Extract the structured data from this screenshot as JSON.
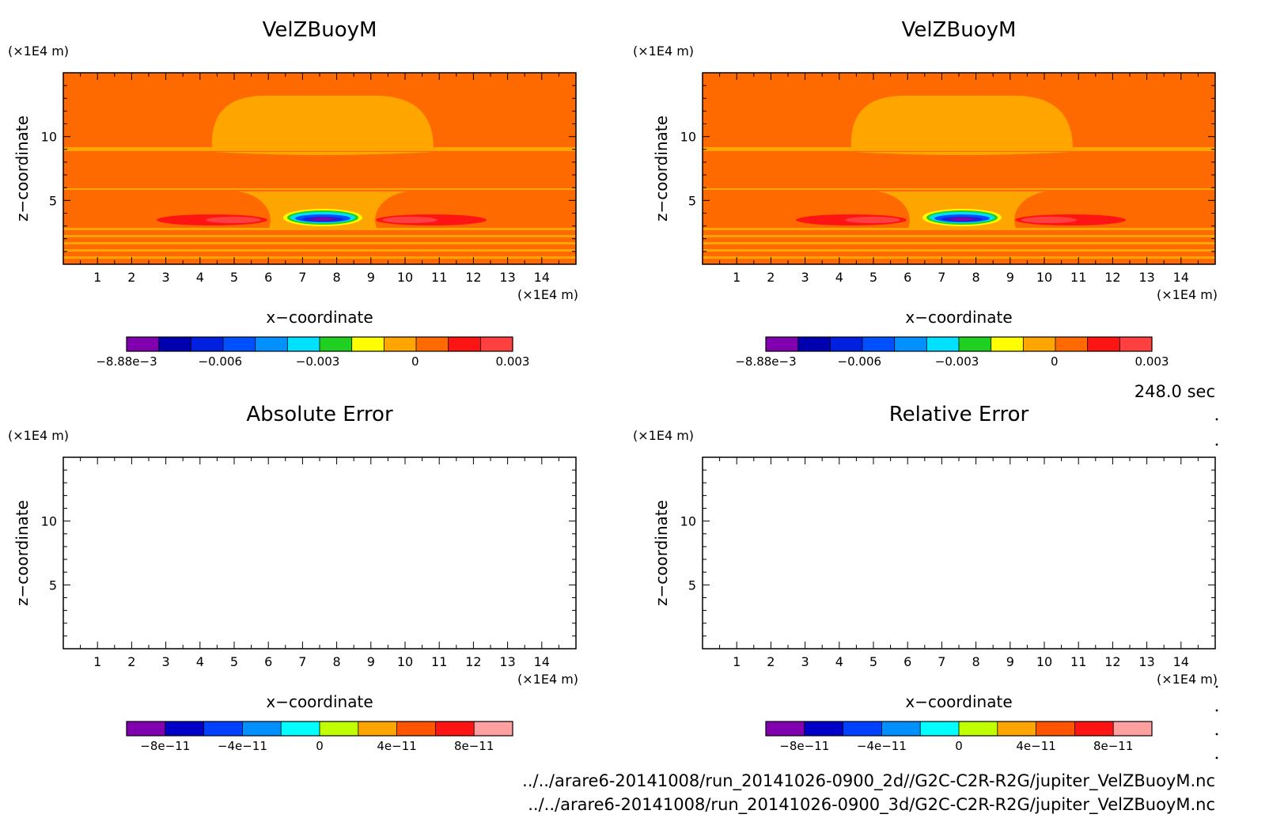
{
  "x_unit": "(×1E4 m)",
  "z_unit": "(×1E4 m)",
  "time_label": "248.0 sec",
  "files": [
    "../../arare6-20141008/run_20141026-0900_2d//G2C-C2R-R2G/jupiter_VelZBuoyM.nc",
    "../../arare6-20141008/run_20141026-0900_3d/G2C-C2R-R2G/jupiter_VelZBuoyM.nc"
  ],
  "panels": [
    {
      "title": "VelZBuoyM",
      "xlabel": "x−coordinate",
      "ylabel": "z−coordinate"
    },
    {
      "title": "VelZBuoyM",
      "xlabel": "x−coordinate",
      "ylabel": "z−coordinate"
    },
    {
      "title": "Absolute Error",
      "xlabel": "x−coordinate",
      "ylabel": "z−coordinate"
    },
    {
      "title": "Relative Error",
      "xlabel": "x−coordinate",
      "ylabel": "z−coordinate"
    }
  ],
  "colors": {
    "field_background": "#ff6a00",
    "warm_cap": "#ffa500",
    "positive_lobes": "#ff1414",
    "negative_core": "#2020d0"
  },
  "chart_data": [
    {
      "type": "heatmap",
      "title": "VelZBuoyM",
      "xlabel": "x−coordinate",
      "ylabel": "z−coordinate",
      "xlim": [
        0,
        15
      ],
      "ylim": [
        0,
        15
      ],
      "x_ticks": [
        "1",
        "2",
        "3",
        "4",
        "5",
        "6",
        "7",
        "8",
        "9",
        "10",
        "11",
        "12",
        "13",
        "14"
      ],
      "y_ticks": [
        "5",
        "10"
      ],
      "colorbar": {
        "range": [
          -0.00888,
          0.003
        ],
        "tick_labels": [
          "−8.88e−3",
          "−0.006",
          "−0.003",
          "0",
          "0.003"
        ],
        "colors": [
          "#8000b0",
          "#0000b0",
          "#0020e0",
          "#0050ff",
          "#0090ff",
          "#00e0ff",
          "#20d020",
          "#ffff00",
          "#ffa500",
          "#ff6a00",
          "#ff1414",
          "#ff4040"
        ]
      }
    },
    {
      "type": "heatmap",
      "title": "VelZBuoyM",
      "xlabel": "x−coordinate",
      "ylabel": "z−coordinate",
      "xlim": [
        0,
        15
      ],
      "ylim": [
        0,
        15
      ],
      "x_ticks": [
        "1",
        "2",
        "3",
        "4",
        "5",
        "6",
        "7",
        "8",
        "9",
        "10",
        "11",
        "12",
        "13",
        "14"
      ],
      "y_ticks": [
        "5",
        "10"
      ],
      "colorbar": {
        "range": [
          -0.00888,
          0.003
        ],
        "tick_labels": [
          "−8.88e−3",
          "−0.006",
          "−0.003",
          "0",
          "0.003"
        ],
        "colors": [
          "#8000b0",
          "#0000b0",
          "#0020e0",
          "#0050ff",
          "#0090ff",
          "#00e0ff",
          "#20d020",
          "#ffff00",
          "#ffa500",
          "#ff6a00",
          "#ff1414",
          "#ff4040"
        ]
      }
    },
    {
      "type": "heatmap",
      "title": "Absolute Error",
      "xlabel": "x−coordinate",
      "ylabel": "z−coordinate",
      "xlim": [
        0,
        15
      ],
      "ylim": [
        0,
        15
      ],
      "x_ticks": [
        "1",
        "2",
        "3",
        "4",
        "5",
        "6",
        "7",
        "8",
        "9",
        "10",
        "11",
        "12",
        "13",
        "14"
      ],
      "y_ticks": [
        "5",
        "10"
      ],
      "colorbar": {
        "range": [
          -1e-10,
          1e-10
        ],
        "tick_labels": [
          "−8e−11",
          "−4e−11",
          "0",
          "4e−11",
          "8e−11"
        ],
        "colors": [
          "#8000b0",
          "#0000c8",
          "#0040ff",
          "#0090ff",
          "#00ffff",
          "#c0ff00",
          "#ffa500",
          "#ff5500",
          "#ff1414",
          "#ffa0a0"
        ]
      }
    },
    {
      "type": "heatmap",
      "title": "Relative Error",
      "xlabel": "x−coordinate",
      "ylabel": "z−coordinate",
      "xlim": [
        0,
        15
      ],
      "ylim": [
        0,
        15
      ],
      "x_ticks": [
        "1",
        "2",
        "3",
        "4",
        "5",
        "6",
        "7",
        "8",
        "9",
        "10",
        "11",
        "12",
        "13",
        "14"
      ],
      "y_ticks": [
        "5",
        "10"
      ],
      "colorbar": {
        "range": [
          -1e-10,
          1e-10
        ],
        "tick_labels": [
          "−8e−11",
          "−4e−11",
          "0",
          "4e−11",
          "8e−11"
        ],
        "colors": [
          "#8000b0",
          "#0000c8",
          "#0040ff",
          "#0090ff",
          "#00ffff",
          "#c0ff00",
          "#ffa500",
          "#ff5500",
          "#ff1414",
          "#ffa0a0"
        ]
      }
    }
  ]
}
